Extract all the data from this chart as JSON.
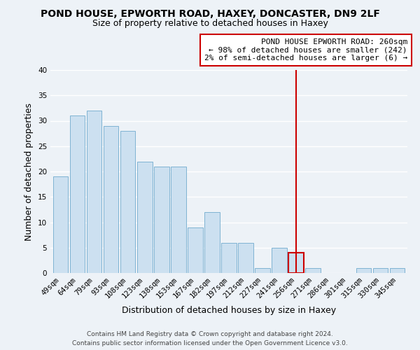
{
  "title": "POND HOUSE, EPWORTH ROAD, HAXEY, DONCASTER, DN9 2LF",
  "subtitle": "Size of property relative to detached houses in Haxey",
  "xlabel": "Distribution of detached houses by size in Haxey",
  "ylabel": "Number of detached properties",
  "bar_labels": [
    "49sqm",
    "64sqm",
    "79sqm",
    "93sqm",
    "108sqm",
    "123sqm",
    "138sqm",
    "153sqm",
    "167sqm",
    "182sqm",
    "197sqm",
    "212sqm",
    "227sqm",
    "241sqm",
    "256sqm",
    "271sqm",
    "286sqm",
    "301sqm",
    "315sqm",
    "330sqm",
    "345sqm"
  ],
  "bar_heights": [
    19,
    31,
    32,
    29,
    28,
    22,
    21,
    21,
    9,
    12,
    6,
    6,
    1,
    5,
    4,
    1,
    0,
    0,
    1,
    1,
    1
  ],
  "bar_color": "#cce0f0",
  "bar_edge_color": "#7fb3d3",
  "highlighted_bar_index": 14,
  "highlighted_bar_edge_color": "#cc0000",
  "vline_x": 14,
  "vline_color": "#cc0000",
  "ylim": [
    0,
    40
  ],
  "yticks": [
    0,
    5,
    10,
    15,
    20,
    25,
    30,
    35,
    40
  ],
  "annotation_title": "POND HOUSE EPWORTH ROAD: 260sqm",
  "annotation_line1": "← 98% of detached houses are smaller (242)",
  "annotation_line2": "2% of semi-detached houses are larger (6) →",
  "annotation_box_color": "#ffffff",
  "annotation_box_edge_color": "#cc0000",
  "footer_line1": "Contains HM Land Registry data © Crown copyright and database right 2024.",
  "footer_line2": "Contains public sector information licensed under the Open Government Licence v3.0.",
  "background_color": "#edf2f7",
  "grid_color": "#ffffff",
  "title_fontsize": 10,
  "subtitle_fontsize": 9,
  "axis_label_fontsize": 9,
  "tick_fontsize": 7.5,
  "annotation_fontsize": 8,
  "footer_fontsize": 6.5
}
